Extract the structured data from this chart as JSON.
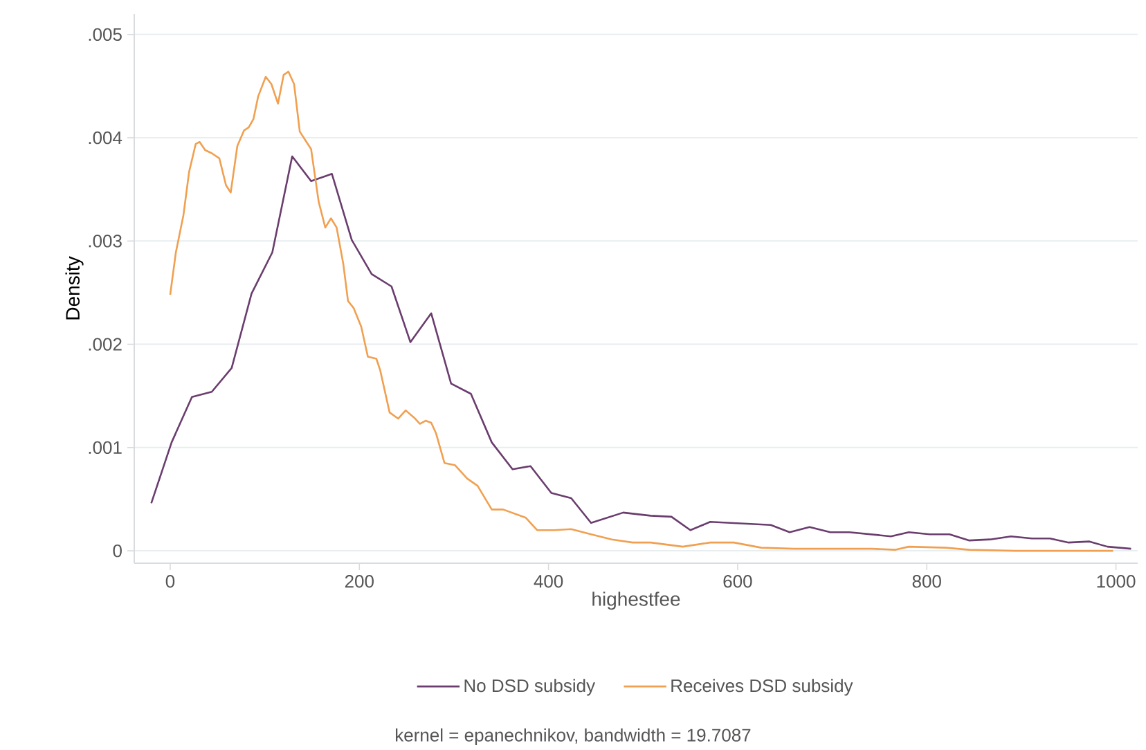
{
  "chart_data": {
    "type": "line",
    "xlabel": "highestfee",
    "ylabel": "Density",
    "xlim": [
      -38,
      1023
    ],
    "ylim": [
      -0.00012,
      0.0052
    ],
    "xticks": [
      0,
      200,
      400,
      600,
      800,
      1000
    ],
    "yticks": [
      0,
      {
        "value": 0.001,
        "label": ".001"
      },
      {
        "value": 0.002,
        "label": ".002"
      },
      {
        "value": 0.003,
        "label": ".003"
      },
      {
        "value": 0.004,
        "label": ".004"
      },
      {
        "value": 0.005,
        "label": ".005"
      }
    ],
    "grid": "y",
    "legend": "bottom",
    "marker": "none",
    "line_style": "solid",
    "series": [
      {
        "name": "No DSD subsidy",
        "color": "#6a3d6e",
        "x": [
          -20,
          1.5,
          23,
          44,
          65,
          86,
          108,
          129,
          149,
          171,
          192,
          213,
          234,
          254,
          276,
          297,
          318,
          340,
          362,
          381,
          403,
          424,
          445,
          479,
          508,
          530,
          550,
          571,
          635,
          655,
          676,
          698,
          718,
          762,
          781,
          803,
          824,
          845,
          867,
          889,
          911,
          930,
          950,
          972,
          991,
          1016
        ],
        "values": [
          0.00046,
          0.00105,
          0.00149,
          0.00154,
          0.00177,
          0.00249,
          0.00289,
          0.00382,
          0.00358,
          0.00365,
          0.00301,
          0.00268,
          0.00256,
          0.00202,
          0.0023,
          0.00162,
          0.00152,
          0.00105,
          0.00079,
          0.00082,
          0.00056,
          0.00051,
          0.00027,
          0.00037,
          0.00034,
          0.00033,
          0.0002,
          0.00028,
          0.00025,
          0.00018,
          0.00023,
          0.00018,
          0.00018,
          0.00014,
          0.00018,
          0.00016,
          0.00016,
          0.0001,
          0.00011,
          0.00014,
          0.00012,
          0.00012,
          8e-05,
          9e-05,
          4e-05,
          2e-05
        ]
      },
      {
        "name": "Receives DSD subsidy",
        "color": "#f0a050",
        "x": [
          0,
          6,
          14,
          20,
          27,
          31,
          37,
          44,
          52,
          59,
          64,
          71,
          78,
          83,
          88,
          93,
          101,
          107,
          114,
          120,
          125,
          131,
          137,
          144,
          149,
          157,
          164,
          170,
          176,
          183,
          188,
          194,
          202,
          209,
          218,
          222,
          232,
          241,
          249,
          259,
          264,
          270,
          276,
          281,
          290,
          301,
          314,
          325,
          340,
          352,
          376,
          388,
          406,
          424,
          445,
          467,
          489,
          508,
          542,
          571,
          596,
          625,
          659,
          718,
          742,
          767,
          781,
          820,
          845,
          893,
          997
        ],
        "values": [
          0.00248,
          0.00289,
          0.00325,
          0.00367,
          0.00394,
          0.00396,
          0.00388,
          0.00385,
          0.0038,
          0.00354,
          0.00347,
          0.00392,
          0.00407,
          0.0041,
          0.00418,
          0.0044,
          0.00459,
          0.00452,
          0.00433,
          0.00461,
          0.00464,
          0.00452,
          0.00406,
          0.00396,
          0.00389,
          0.00338,
          0.00313,
          0.00322,
          0.00313,
          0.00278,
          0.00242,
          0.00235,
          0.00217,
          0.00188,
          0.00186,
          0.00175,
          0.00134,
          0.00128,
          0.00136,
          0.00128,
          0.00123,
          0.00126,
          0.00124,
          0.00114,
          0.00085,
          0.00083,
          0.0007,
          0.00063,
          0.0004,
          0.0004,
          0.00032,
          0.0002,
          0.0002,
          0.00021,
          0.00016,
          0.00011,
          8e-05,
          8e-05,
          4e-05,
          8e-05,
          8e-05,
          3e-05,
          2e-05,
          2e-05,
          2e-05,
          1e-05,
          4e-05,
          3e-05,
          1e-05,
          0.0,
          0.0
        ]
      }
    ],
    "annotations": [
      "kernel = epanechnikov, bandwidth = 19.7087"
    ]
  }
}
